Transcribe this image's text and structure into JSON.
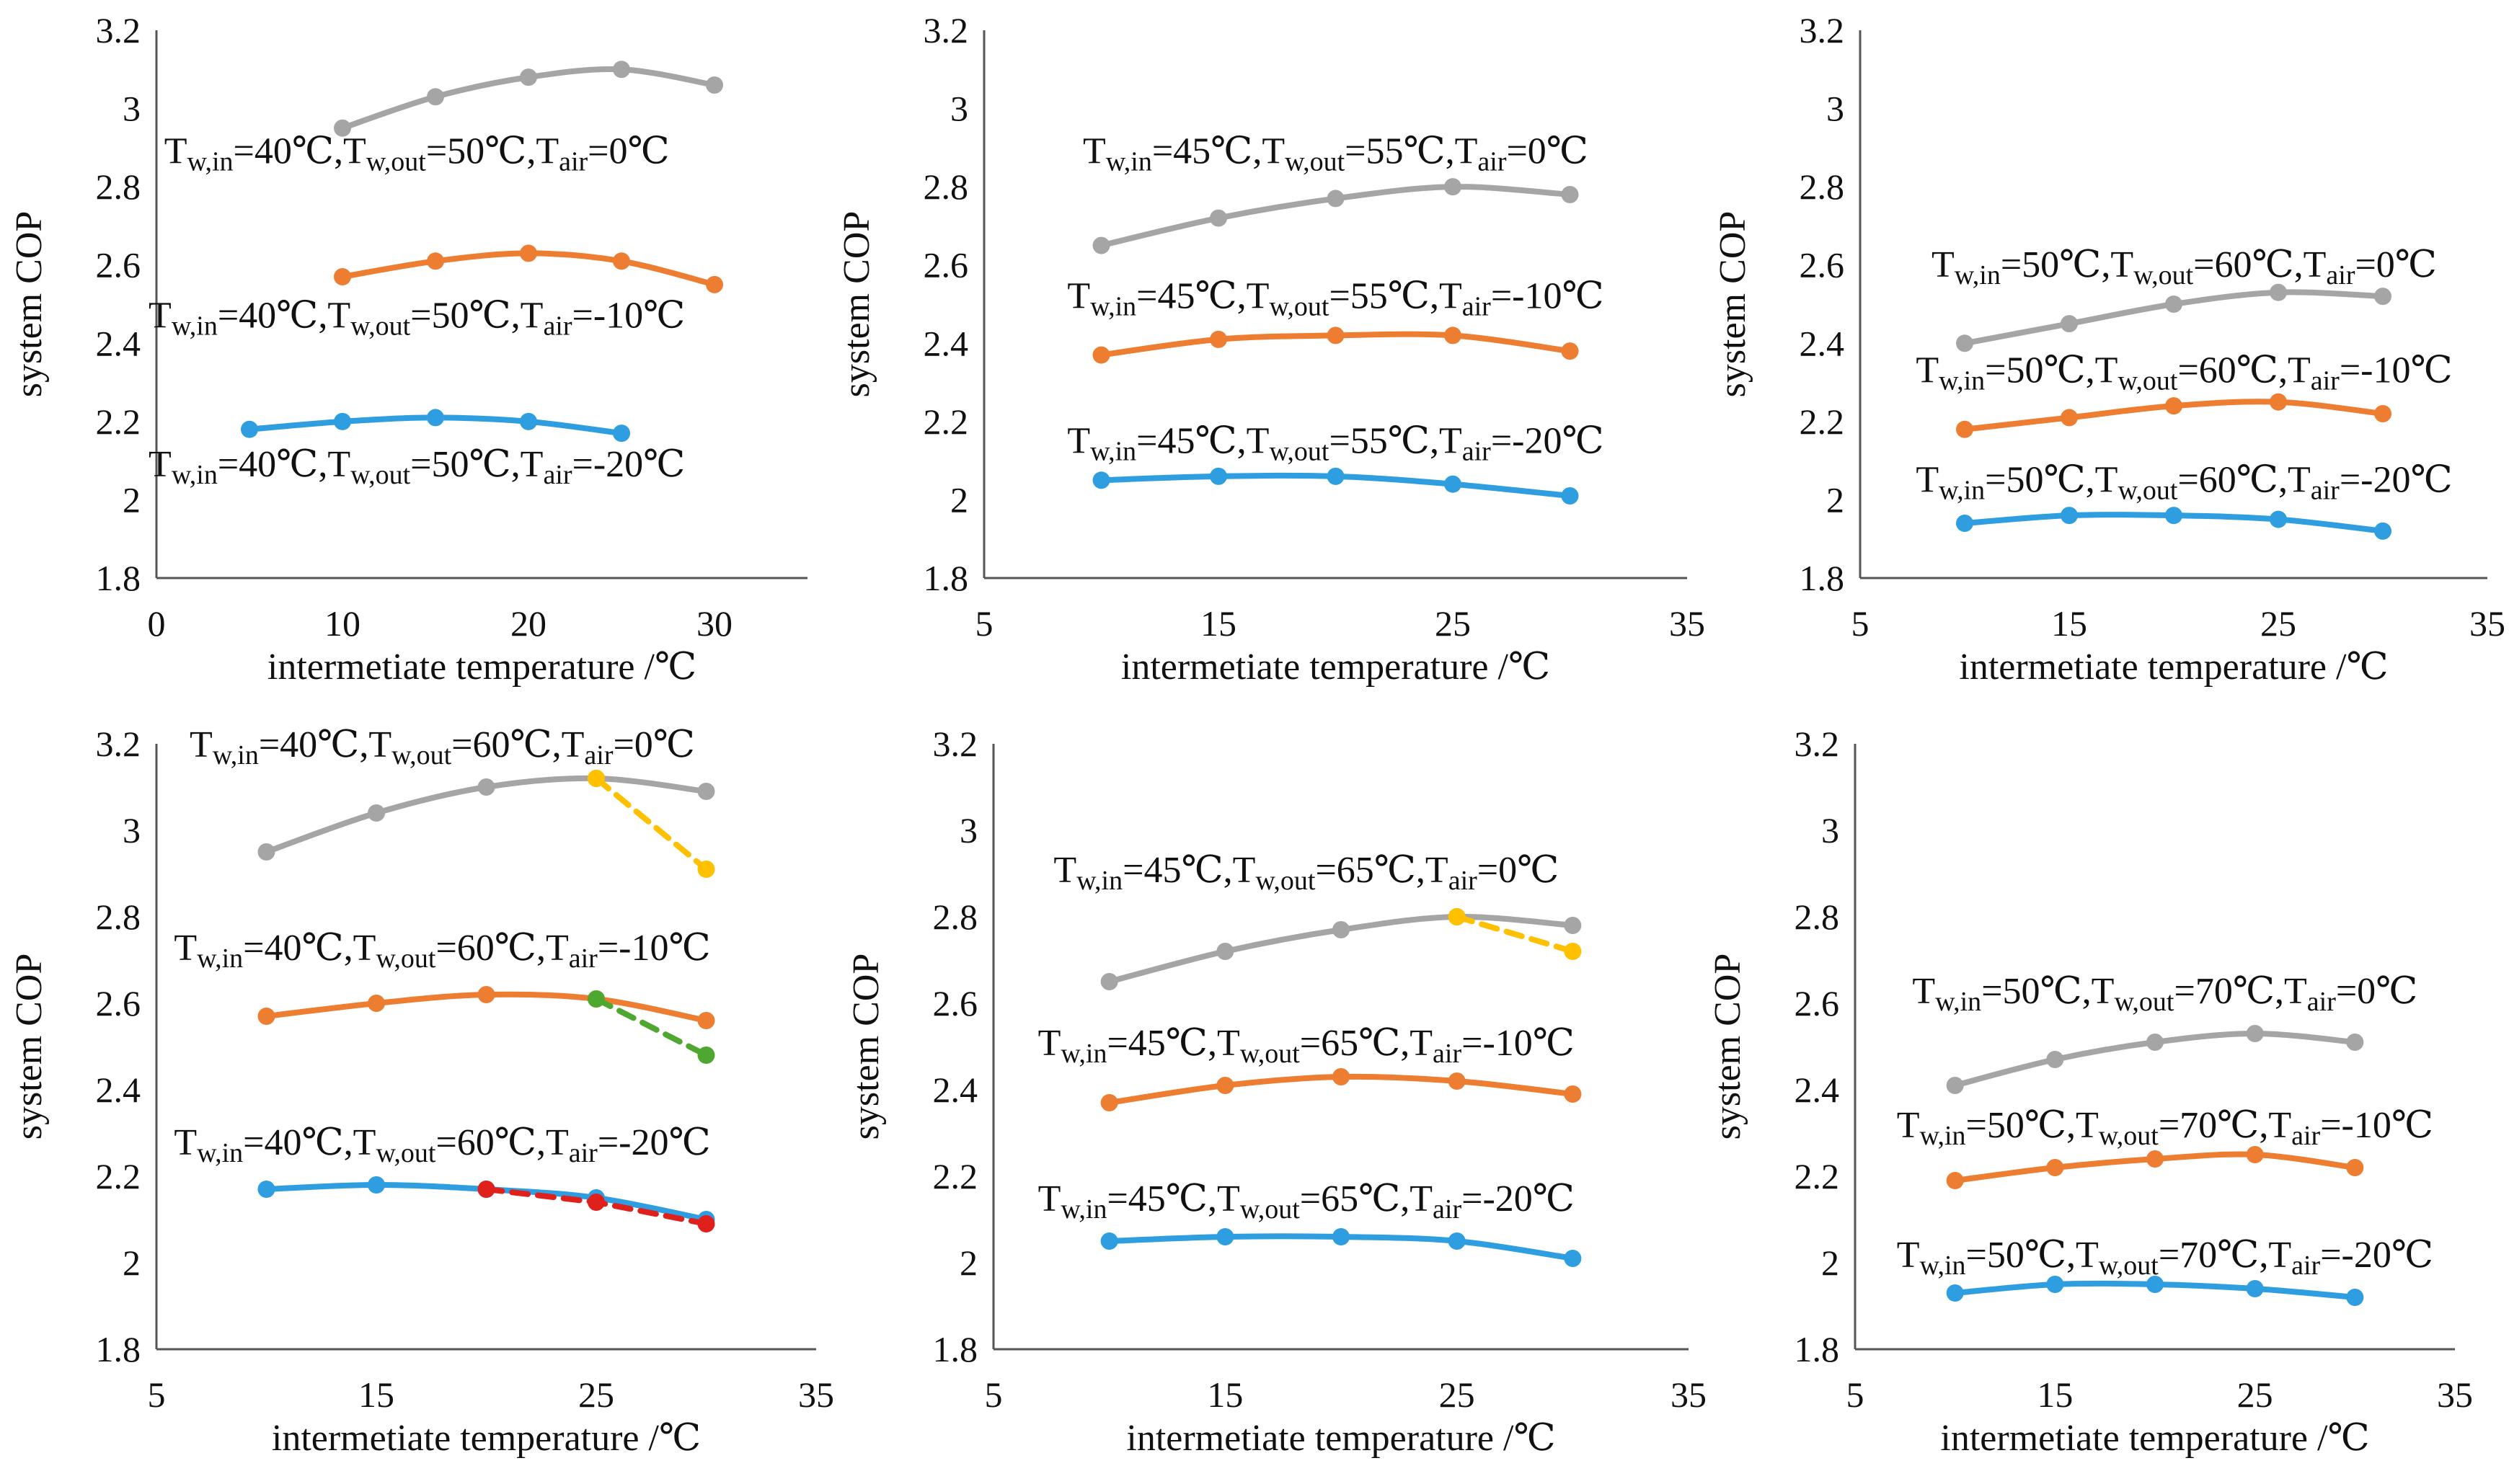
{
  "chart_data": [
    {
      "type": "line",
      "xlim": [
        0,
        35
      ],
      "ylim": [
        1.8,
        3.2
      ],
      "xticks": [
        "0",
        "10",
        "20",
        "30"
      ],
      "yticks": [
        "1.8",
        "2",
        "2.2",
        "2.4",
        "2.6",
        "2.8",
        "3",
        "3.2"
      ],
      "xlabel": "intermetiate temperature /℃",
      "ylabel": "system COP",
      "series": [
        {
          "name": "Tair=0℃",
          "color": "#a5a5a5",
          "x": [
            10,
            15,
            20,
            25,
            30
          ],
          "y": [
            2.95,
            3.03,
            3.08,
            3.1,
            3.06
          ]
        },
        {
          "name": "Tair=-10℃",
          "color": "#ed7d31",
          "x": [
            10,
            15,
            20,
            25,
            30
          ],
          "y": [
            2.57,
            2.61,
            2.63,
            2.61,
            2.55
          ]
        },
        {
          "name": "Tair=-20℃",
          "color": "#2e9ee0",
          "x": [
            5,
            10,
            15,
            20,
            25
          ],
          "y": [
            2.18,
            2.2,
            2.21,
            2.2,
            2.17
          ]
        }
      ],
      "annotations": [
        {
          "parts": [
            "T",
            "w,in",
            "=40℃,T",
            "w,out",
            "=50℃,T",
            "air",
            "=0℃"
          ],
          "x": 14,
          "y": 2.86
        },
        {
          "parts": [
            "T",
            "w,in",
            "=40℃,T",
            "w,out",
            "=50℃,T",
            "air",
            "=-10℃"
          ],
          "x": 14,
          "y": 2.44
        },
        {
          "parts": [
            "T",
            "w,in",
            "=40℃,T",
            "w,out",
            "=50℃,T",
            "air",
            "=-20℃"
          ],
          "x": 14,
          "y": 2.06
        }
      ]
    },
    {
      "type": "line",
      "xlim": [
        5,
        35
      ],
      "ylim": [
        1.8,
        3.2
      ],
      "xticks": [
        "5",
        "15",
        "25",
        "35"
      ],
      "yticks": [
        "1.8",
        "2",
        "2.2",
        "2.4",
        "2.6",
        "2.8",
        "3",
        "3.2"
      ],
      "xlabel": "intermetiate temperature /℃",
      "ylabel": "system COP",
      "series": [
        {
          "name": "Tair=0℃",
          "color": "#a5a5a5",
          "x": [
            10,
            15,
            20,
            25,
            30
          ],
          "y": [
            2.65,
            2.72,
            2.77,
            2.8,
            2.78
          ]
        },
        {
          "name": "Tair=-10℃",
          "color": "#ed7d31",
          "x": [
            10,
            15,
            20,
            25,
            30
          ],
          "y": [
            2.37,
            2.41,
            2.42,
            2.42,
            2.38
          ]
        },
        {
          "name": "Tair=-20℃",
          "color": "#2e9ee0",
          "x": [
            10,
            15,
            20,
            25,
            30
          ],
          "y": [
            2.05,
            2.06,
            2.06,
            2.04,
            2.01
          ]
        }
      ],
      "annotations": [
        {
          "parts": [
            "T",
            "w,in",
            "=45℃,T",
            "w,out",
            "=55℃,T",
            "air",
            "=0℃"
          ],
          "x": 20,
          "y": 2.86
        },
        {
          "parts": [
            "T",
            "w,in",
            "=45℃,T",
            "w,out",
            "=55℃,T",
            "air",
            "=-10℃"
          ],
          "x": 20,
          "y": 2.49
        },
        {
          "parts": [
            "T",
            "w,in",
            "=45℃,T",
            "w,out",
            "=55℃,T",
            "air",
            "=-20℃"
          ],
          "x": 20,
          "y": 2.12
        }
      ]
    },
    {
      "type": "line",
      "xlim": [
        5,
        35
      ],
      "ylim": [
        1.8,
        3.2
      ],
      "xticks": [
        "5",
        "15",
        "25",
        "35"
      ],
      "yticks": [
        "1.8",
        "2",
        "2.2",
        "2.4",
        "2.6",
        "2.8",
        "3",
        "3.2"
      ],
      "xlabel": "intermetiate temperature /℃",
      "ylabel": "system COP",
      "series": [
        {
          "name": "Tair=0℃",
          "color": "#a5a5a5",
          "x": [
            10,
            15,
            20,
            25,
            30
          ],
          "y": [
            2.4,
            2.45,
            2.5,
            2.53,
            2.52
          ]
        },
        {
          "name": "Tair=-10℃",
          "color": "#ed7d31",
          "x": [
            10,
            15,
            20,
            25,
            30
          ],
          "y": [
            2.18,
            2.21,
            2.24,
            2.25,
            2.22
          ]
        },
        {
          "name": "Tair=-20℃",
          "color": "#2e9ee0",
          "x": [
            10,
            15,
            20,
            25,
            30
          ],
          "y": [
            1.94,
            1.96,
            1.96,
            1.95,
            1.92
          ]
        }
      ],
      "annotations": [
        {
          "parts": [
            "T",
            "w,in",
            "=50℃,T",
            "w,out",
            "=60℃,T",
            "air",
            "=0℃"
          ],
          "x": 20.5,
          "y": 2.57
        },
        {
          "parts": [
            "T",
            "w,in",
            "=50℃,T",
            "w,out",
            "=60℃,T",
            "air",
            "=-10℃"
          ],
          "x": 20.5,
          "y": 2.3
        },
        {
          "parts": [
            "T",
            "w,in",
            "=50℃,T",
            "w,out",
            "=60℃,T",
            "air",
            "=-20℃"
          ],
          "x": 20.5,
          "y": 2.02
        }
      ]
    },
    {
      "type": "line",
      "xlim": [
        5,
        35
      ],
      "ylim": [
        1.8,
        3.2
      ],
      "xticks": [
        "5",
        "15",
        "25",
        "35"
      ],
      "yticks": [
        "1.8",
        "2",
        "2.2",
        "2.4",
        "2.6",
        "2.8",
        "3",
        "3.2"
      ],
      "xlabel": "intermetiate temperature /℃",
      "ylabel": "system COP",
      "series": [
        {
          "name": "Tair=0℃",
          "color": "#a5a5a5",
          "x": [
            10,
            15,
            20,
            25,
            30
          ],
          "y": [
            2.95,
            3.04,
            3.1,
            3.12,
            3.09
          ]
        },
        {
          "name": "Tair=-10℃",
          "color": "#ed7d31",
          "x": [
            10,
            15,
            20,
            25,
            30
          ],
          "y": [
            2.57,
            2.6,
            2.62,
            2.61,
            2.56
          ]
        },
        {
          "name": "Tair=-20℃",
          "color": "#2e9ee0",
          "x": [
            10,
            15,
            20,
            25,
            30
          ],
          "y": [
            2.17,
            2.18,
            2.17,
            2.15,
            2.1
          ]
        },
        {
          "name": "Tair=0℃ (dashed)",
          "color": "#ffc000",
          "dashed": true,
          "x": [
            25,
            30
          ],
          "y": [
            3.12,
            2.91
          ]
        },
        {
          "name": "Tair=-10℃ (dashed)",
          "color": "#4ea72e",
          "dashed": true,
          "x": [
            25,
            30
          ],
          "y": [
            2.61,
            2.48
          ]
        },
        {
          "name": "Tair=-20℃ (dashed)",
          "color": "#e0201b",
          "dashed": true,
          "x": [
            20,
            25,
            30
          ],
          "y": [
            2.17,
            2.14,
            2.09
          ]
        }
      ],
      "annotations": [
        {
          "parts": [
            "T",
            "w,in",
            "=40℃,T",
            "w,out",
            "=60℃,T",
            "air",
            "=0℃"
          ],
          "x": 18,
          "y": 3.17
        },
        {
          "parts": [
            "T",
            "w,in",
            "=40℃,T",
            "w,out",
            "=60℃,T",
            "air",
            "=-10℃"
          ],
          "x": 18,
          "y": 2.7
        },
        {
          "parts": [
            "T",
            "w,in",
            "=40℃,T",
            "w,out",
            "=60℃,T",
            "air",
            "=-20℃"
          ],
          "x": 18,
          "y": 2.25
        }
      ]
    },
    {
      "type": "line",
      "xlim": [
        5,
        35
      ],
      "ylim": [
        1.8,
        3.2
      ],
      "xticks": [
        "5",
        "15",
        "25",
        "35"
      ],
      "yticks": [
        "1.8",
        "2",
        "2.2",
        "2.4",
        "2.6",
        "2.8",
        "3",
        "3.2"
      ],
      "xlabel": "intermetiate temperature /℃",
      "ylabel": "system COP",
      "series": [
        {
          "name": "Tair=0℃",
          "color": "#a5a5a5",
          "x": [
            10,
            15,
            20,
            25,
            30
          ],
          "y": [
            2.65,
            2.72,
            2.77,
            2.8,
            2.78
          ]
        },
        {
          "name": "Tair=-10℃",
          "color": "#ed7d31",
          "x": [
            10,
            15,
            20,
            25,
            30
          ],
          "y": [
            2.37,
            2.41,
            2.43,
            2.42,
            2.39
          ]
        },
        {
          "name": "Tair=-20℃",
          "color": "#2e9ee0",
          "x": [
            10,
            15,
            20,
            25,
            30
          ],
          "y": [
            2.05,
            2.06,
            2.06,
            2.05,
            2.01
          ]
        },
        {
          "name": "Tair=0℃ (dashed)",
          "color": "#ffc000",
          "dashed": true,
          "x": [
            25,
            30
          ],
          "y": [
            2.8,
            2.72
          ]
        }
      ],
      "annotations": [
        {
          "parts": [
            "T",
            "w,in",
            "=45℃,T",
            "w,out",
            "=65℃,T",
            "air",
            "=0℃"
          ],
          "x": 18.5,
          "y": 2.88
        },
        {
          "parts": [
            "T",
            "w,in",
            "=45℃,T",
            "w,out",
            "=65℃,T",
            "air",
            "=-10℃"
          ],
          "x": 18.5,
          "y": 2.48
        },
        {
          "parts": [
            "T",
            "w,in",
            "=45℃,T",
            "w,out",
            "=65℃,T",
            "air",
            "=-20℃"
          ],
          "x": 18.5,
          "y": 2.12
        }
      ]
    },
    {
      "type": "line",
      "xlim": [
        5,
        35
      ],
      "ylim": [
        1.8,
        3.2
      ],
      "xticks": [
        "5",
        "15",
        "25",
        "35"
      ],
      "yticks": [
        "1.8",
        "2",
        "2.2",
        "2.4",
        "2.6",
        "2.8",
        "3",
        "3.2"
      ],
      "xlabel": "intermetiate temperature /℃",
      "ylabel": "system COP",
      "series": [
        {
          "name": "Tair=0℃",
          "color": "#a5a5a5",
          "x": [
            10,
            15,
            20,
            25,
            30
          ],
          "y": [
            2.41,
            2.47,
            2.51,
            2.53,
            2.51
          ]
        },
        {
          "name": "Tair=-10℃",
          "color": "#ed7d31",
          "x": [
            10,
            15,
            20,
            25,
            30
          ],
          "y": [
            2.19,
            2.22,
            2.24,
            2.25,
            2.22
          ]
        },
        {
          "name": "Tair=-20℃",
          "color": "#2e9ee0",
          "x": [
            10,
            15,
            20,
            25,
            30
          ],
          "y": [
            1.93,
            1.95,
            1.95,
            1.94,
            1.92
          ]
        }
      ],
      "annotations": [
        {
          "parts": [
            "T",
            "w,in",
            "=50℃,T",
            "w,out",
            "=70℃,T",
            "air",
            "=0℃"
          ],
          "x": 20.5,
          "y": 2.6
        },
        {
          "parts": [
            "T",
            "w,in",
            "=50℃,T",
            "w,out",
            "=70℃,T",
            "air",
            "=-10℃"
          ],
          "x": 20.5,
          "y": 2.29
        },
        {
          "parts": [
            "T",
            "w,in",
            "=50℃,T",
            "w,out",
            "=70℃,T",
            "air",
            "=-20℃"
          ],
          "x": 20.5,
          "y": 1.99
        }
      ]
    }
  ]
}
